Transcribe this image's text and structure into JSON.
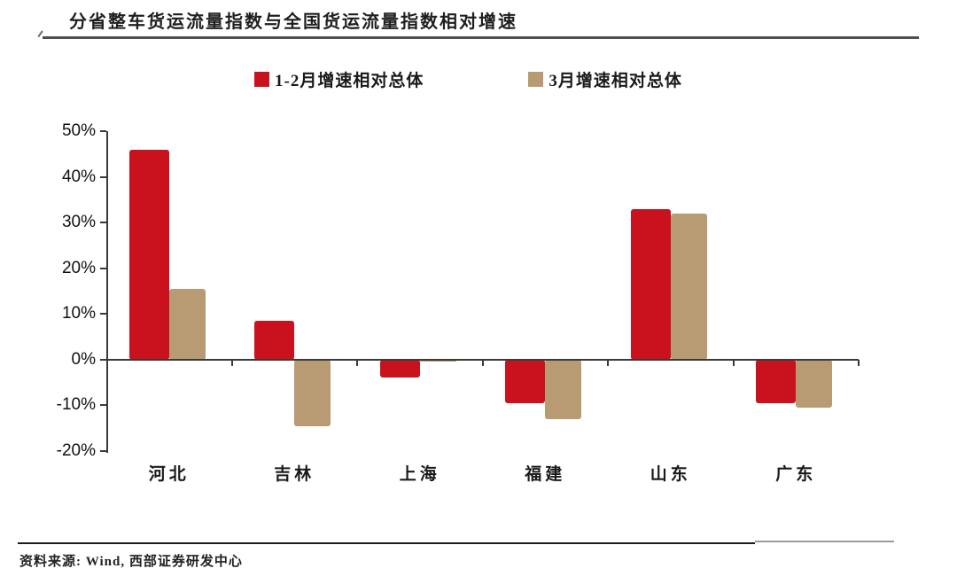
{
  "page": {
    "title": "分省整车货运流量指数与全国货运流量指数相对增速",
    "source": "资料来源: Wind, 西部证券研发中心"
  },
  "chart_data": {
    "type": "bar",
    "title": "分省整车货运流量指数与全国货运流量指数相对增速",
    "categories": [
      "河北",
      "吉林",
      "上海",
      "福建",
      "山东",
      "广东"
    ],
    "series": [
      {
        "name": "1-2月增速相对总体",
        "color": "#C9121E",
        "values": [
          46,
          8.5,
          -4,
          -9.5,
          33,
          -9.5
        ]
      },
      {
        "name": "3月增速相对总体",
        "color": "#B89B72",
        "values": [
          15.5,
          -14.5,
          -0.5,
          -13,
          32,
          -10.5
        ]
      }
    ],
    "xlabel": "",
    "ylabel": "",
    "ylim": [
      -20,
      50
    ],
    "ytick_step": 10,
    "ytick_labels": [
      "50%",
      "40%",
      "30%",
      "20%",
      "10%",
      "0%",
      "-10%",
      "-20%"
    ],
    "legend_position": "top",
    "grid": false,
    "axis_color": "#3a3a3a"
  }
}
